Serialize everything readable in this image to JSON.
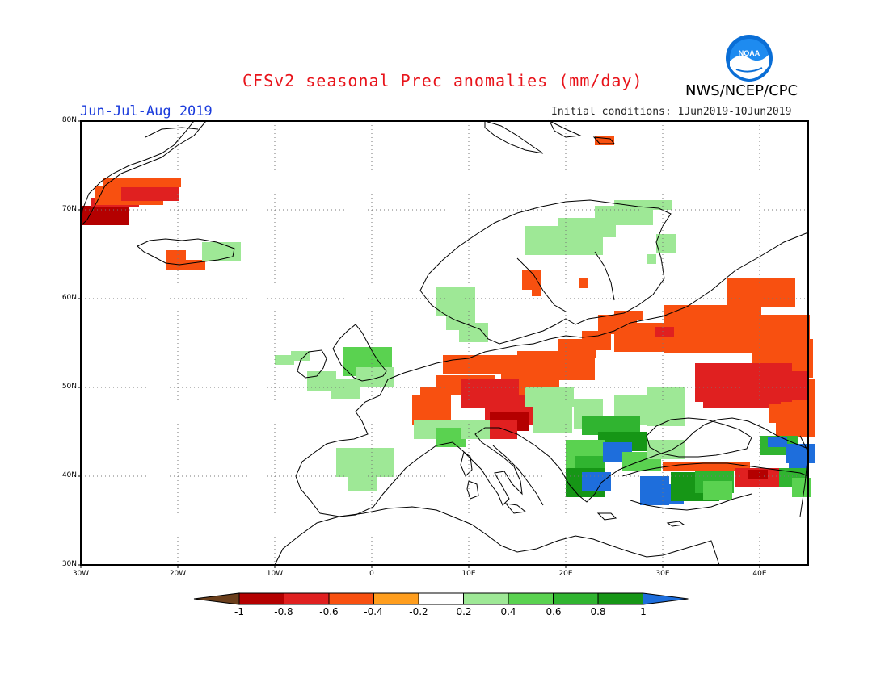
{
  "header": {
    "title": "CFSv2 seasonal Prec anomalies (mm/day)",
    "period": "Jun-Jul-Aug 2019",
    "initial_conditions": "Initial conditions: 1Jun2019-10Jun2019",
    "agency": "NWS/NCEP/CPC",
    "logo_text": "NOAA"
  },
  "map": {
    "lat_labels": [
      "80N",
      "70N",
      "60N",
      "50N",
      "40N",
      "30N"
    ],
    "lon_labels": [
      "30W",
      "20W",
      "10W",
      "0",
      "10E",
      "20E",
      "30E",
      "40E"
    ],
    "gridlines": "dotted"
  },
  "colorbar": {
    "tick_labels": [
      "-1",
      "-0.8",
      "-0.6",
      "-0.4",
      "-0.2",
      "0.2",
      "0.4",
      "0.6",
      "0.8",
      "1"
    ],
    "colors": [
      "#6b3f1c",
      "#b40000",
      "#e02020",
      "#f85010",
      "#ff9e1e",
      "#ffffff",
      "#9ee896",
      "#5ad250",
      "#30b430",
      "#169616",
      "#1e6edc"
    ]
  },
  "colors": {
    "title": "#e8141b",
    "period": "#1a3bdc",
    "logo": "#0a6ed6"
  }
}
